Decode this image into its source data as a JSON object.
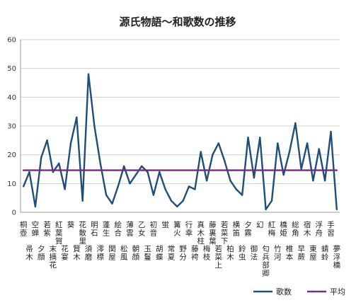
{
  "chart_data": {
    "type": "line",
    "title": "源氏物語～和歌数の推移",
    "xlabel": "",
    "ylabel": "",
    "ylim": [
      0,
      60
    ],
    "yticks": [
      0,
      10,
      20,
      30,
      40,
      50,
      60
    ],
    "grid": true,
    "legend_position": "bottom-right",
    "categories": [
      "桐壺",
      "帚木",
      "空蝉",
      "夕顔",
      "若紫",
      "末摘花",
      "紅葉賀",
      "花宴",
      "葵",
      "賢木",
      "花散里",
      "須磨",
      "明石",
      "澪標",
      "蓬生",
      "関屋",
      "絵合",
      "松風",
      "薄雲",
      "朝顔",
      "乙女",
      "玉鬘",
      "初音",
      "胡蝶",
      "蛍",
      "常夏",
      "篝火",
      "野分",
      "行幸",
      "藤袴",
      "真木柱",
      "梅枝",
      "藤裏葉",
      "若菜上",
      "若菜下",
      "柏木",
      "横笛",
      "鈴虫",
      "夕霧",
      "御法",
      "幻",
      "匂兵部卿",
      "紅梅",
      "竹河",
      "橋姫",
      "椎本",
      "総角",
      "早蕨",
      "宿木",
      "東屋",
      "浮舟",
      "蜻蛉",
      "手習",
      "夢浮橋"
    ],
    "series": [
      {
        "name": "歌数",
        "color": "#1f4e79",
        "values": [
          9,
          14,
          2,
          19,
          25,
          14,
          17,
          8,
          24,
          33,
          4,
          48,
          30,
          17,
          6,
          3,
          9,
          16,
          10,
          13,
          16,
          14,
          6,
          14,
          8,
          4,
          2,
          4,
          9,
          8,
          21,
          11,
          20,
          24,
          18,
          11,
          8,
          6,
          26,
          12,
          26,
          1,
          4,
          24,
          13,
          21,
          31,
          15,
          24,
          11,
          22,
          11,
          28,
          1
        ]
      },
      {
        "name": "平均",
        "color": "#7b2a8a",
        "values": [
          14.6,
          14.6,
          14.6,
          14.6,
          14.6,
          14.6,
          14.6,
          14.6,
          14.6,
          14.6,
          14.6,
          14.6,
          14.6,
          14.6,
          14.6,
          14.6,
          14.6,
          14.6,
          14.6,
          14.6,
          14.6,
          14.6,
          14.6,
          14.6,
          14.6,
          14.6,
          14.6,
          14.6,
          14.6,
          14.6,
          14.6,
          14.6,
          14.6,
          14.6,
          14.6,
          14.6,
          14.6,
          14.6,
          14.6,
          14.6,
          14.6,
          14.6,
          14.6,
          14.6,
          14.6,
          14.6,
          14.6,
          14.6,
          14.6,
          14.6,
          14.6,
          14.6,
          14.6,
          14.6
        ]
      }
    ]
  }
}
